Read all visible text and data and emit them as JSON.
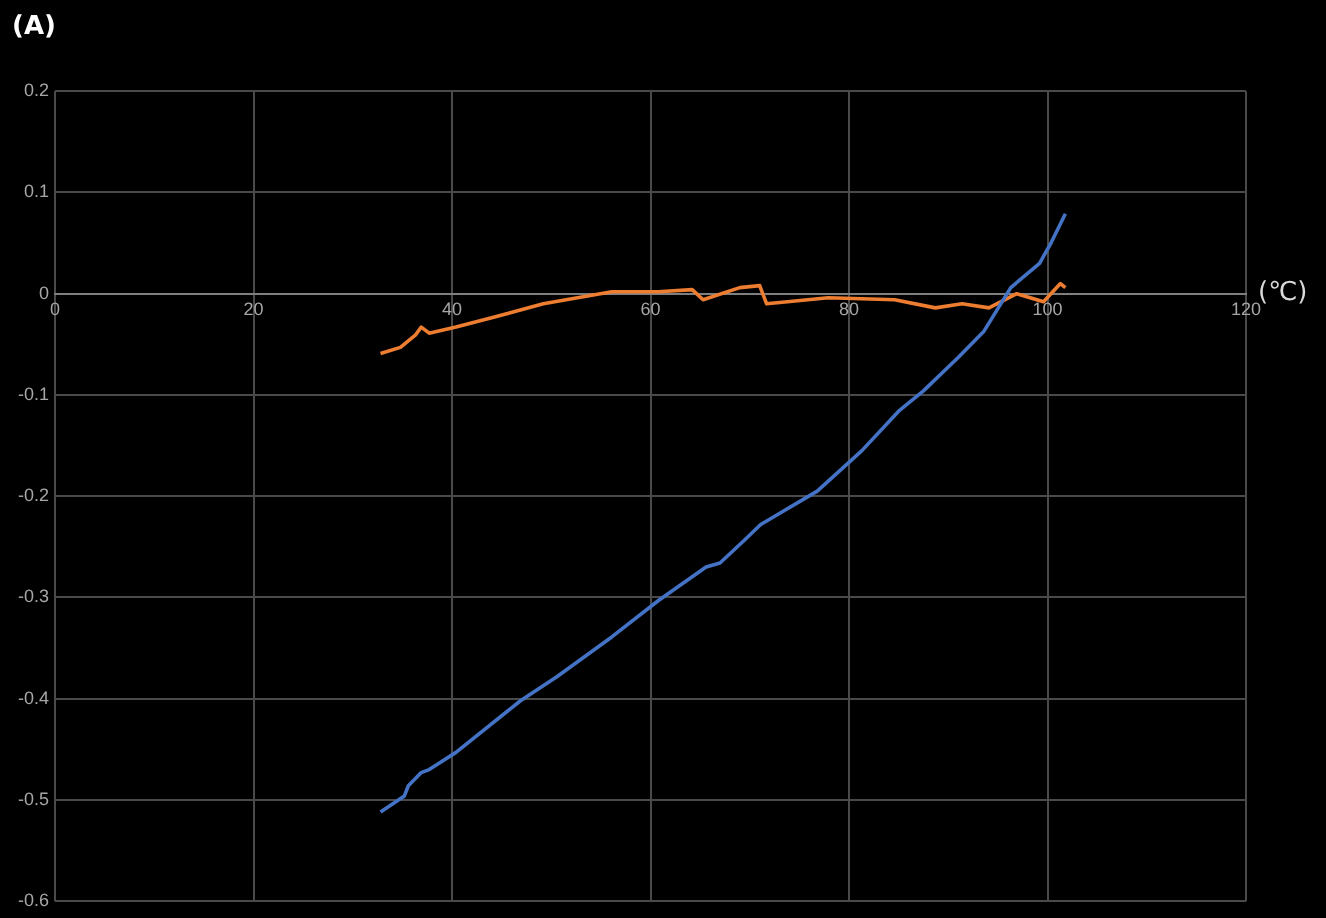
{
  "chart_data": {
    "type": "line",
    "title": "(A)",
    "xlabel": "(℃)",
    "xlim": [
      0,
      120
    ],
    "xticks": [
      0,
      20,
      40,
      60,
      80,
      100,
      120
    ],
    "ylim": [
      -0.6,
      0.2
    ],
    "yticks": [
      -0.6,
      -0.5,
      -0.4,
      -0.3,
      -0.2,
      -0.1,
      0,
      0.1,
      0.2
    ],
    "grid": true,
    "legend": false,
    "marker": "none",
    "line_style": "solid",
    "series": [
      {
        "color": "#4472c4",
        "x": [
          32.8,
          35.2,
          35.6,
          36.9,
          37.7,
          40.4,
          46.9,
          50.6,
          56.1,
          60.8,
          65.6,
          67,
          69.4,
          71.1,
          76.8,
          81.3,
          85,
          87.5,
          91,
          93.6,
          96.3,
          99.2,
          100.4,
          101.8
        ],
        "values": [
          -0.512,
          -0.496,
          -0.486,
          -0.473,
          -0.47,
          -0.453,
          -0.402,
          -0.378,
          -0.339,
          -0.303,
          -0.27,
          -0.266,
          -0.244,
          -0.228,
          -0.195,
          -0.155,
          -0.116,
          -0.096,
          -0.063,
          -0.037,
          0.006,
          0.03,
          0.051,
          0.079
        ]
      },
      {
        "color": "#ed7d31",
        "x": [
          32.8,
          34.8,
          36.3,
          36.9,
          37.7,
          40.4,
          43.9,
          49.2,
          56.1,
          60.8,
          64.2,
          65.3,
          69,
          71,
          71.7,
          73.8,
          77.9,
          84.6,
          88.7,
          91.4,
          94.1,
          96.9,
          99.6,
          101.3,
          101.8
        ],
        "values": [
          -0.059,
          -0.053,
          -0.041,
          -0.033,
          -0.039,
          -0.033,
          -0.024,
          -0.01,
          0.002,
          0.002,
          0.004,
          -0.006,
          0.006,
          0.008,
          -0.01,
          -0.008,
          -0.004,
          -0.006,
          -0.014,
          -0.01,
          -0.014,
          0,
          -0.008,
          0.01,
          0.006
        ]
      }
    ]
  }
}
